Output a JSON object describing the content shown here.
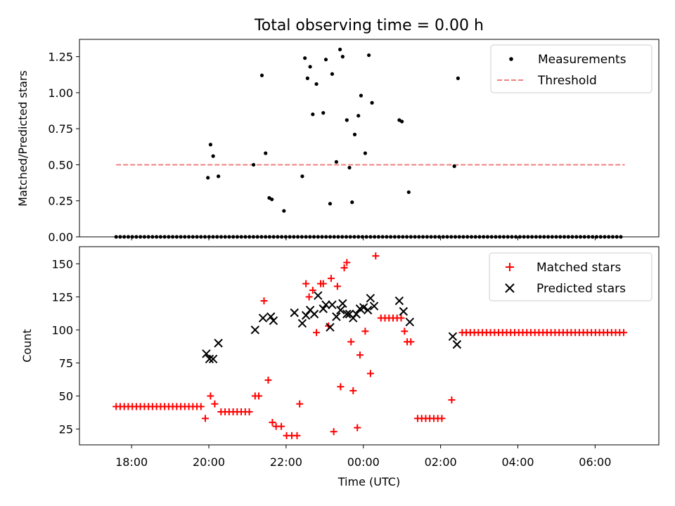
{
  "colors": {
    "measurement": "#000000",
    "threshold": "#f08080",
    "matched": "#ff0000",
    "predicted": "#000000",
    "axis": "#000000"
  },
  "chart_data": [
    {
      "type": "scatter",
      "title": "Total observing time = 0.00 h",
      "xlabel": "",
      "ylabel": "Matched/Predicted stars",
      "xlim": [
        -1.4,
        9.65
      ],
      "ylim": [
        0,
        1.37
      ],
      "yticks": [
        0.0,
        0.25,
        0.5,
        0.75,
        1.0,
        1.25
      ],
      "ytick_labels": [
        "0.00",
        "0.25",
        "0.50",
        "0.75",
        "1.00",
        "1.25"
      ],
      "legend_position": "top-right",
      "legend": {
        "measurements": "Measurements",
        "threshold": "Threshold"
      },
      "threshold": {
        "value": 0.5,
        "x_start": -0.7,
        "x_end": 9.0
      },
      "zero_points": {
        "from": -0.7,
        "to": 9.0,
        "step": 0.077,
        "value": 0
      },
      "measurements": [
        {
          "x": 1.05,
          "y": 0.41
        },
        {
          "x": 1.1,
          "y": 0.64
        },
        {
          "x": 1.15,
          "y": 0.56
        },
        {
          "x": 1.25,
          "y": 0.42
        },
        {
          "x": 1.92,
          "y": 0.5
        },
        {
          "x": 2.08,
          "y": 1.12
        },
        {
          "x": 2.15,
          "y": 0.58
        },
        {
          "x": 2.22,
          "y": 0.27
        },
        {
          "x": 2.27,
          "y": 0.26
        },
        {
          "x": 2.5,
          "y": 0.18
        },
        {
          "x": 2.85,
          "y": 0.42
        },
        {
          "x": 2.9,
          "y": 1.24
        },
        {
          "x": 2.95,
          "y": 1.1
        },
        {
          "x": 3.0,
          "y": 1.18
        },
        {
          "x": 3.05,
          "y": 0.85
        },
        {
          "x": 3.12,
          "y": 1.06
        },
        {
          "x": 3.25,
          "y": 0.86
        },
        {
          "x": 3.3,
          "y": 1.23
        },
        {
          "x": 3.38,
          "y": 0.23
        },
        {
          "x": 3.42,
          "y": 1.13
        },
        {
          "x": 3.5,
          "y": 0.52
        },
        {
          "x": 3.57,
          "y": 1.3
        },
        {
          "x": 3.62,
          "y": 1.25
        },
        {
          "x": 3.7,
          "y": 0.81
        },
        {
          "x": 3.75,
          "y": 0.48
        },
        {
          "x": 3.8,
          "y": 0.24
        },
        {
          "x": 3.85,
          "y": 0.71
        },
        {
          "x": 3.92,
          "y": 0.84
        },
        {
          "x": 3.97,
          "y": 0.98
        },
        {
          "x": 4.05,
          "y": 0.58
        },
        {
          "x": 4.12,
          "y": 1.26
        },
        {
          "x": 4.18,
          "y": 0.93
        },
        {
          "x": 4.7,
          "y": 0.81
        },
        {
          "x": 4.75,
          "y": 0.8
        },
        {
          "x": 4.88,
          "y": 0.31
        },
        {
          "x": 5.75,
          "y": 0.49
        },
        {
          "x": 5.82,
          "y": 1.1
        }
      ]
    },
    {
      "type": "scatter",
      "title": "",
      "xlabel": "Time (UTC)",
      "ylabel": "Count",
      "xlim": [
        -1.4,
        9.65
      ],
      "ylim": [
        13,
        163
      ],
      "yticks": [
        25,
        50,
        75,
        100,
        125,
        150
      ],
      "ytick_labels": [
        "25",
        "50",
        "75",
        "100",
        "125",
        "150"
      ],
      "xticks": [
        0,
        2,
        4,
        6,
        8
      ],
      "xtick_labels": [
        "18:00",
        "20:00",
        "22:00",
        "00:00",
        "02:00",
        "04:00",
        "06:00"
      ],
      "xtick_values": [
        0,
        2,
        4,
        6,
        8,
        10,
        12
      ],
      "legend_position": "top-right",
      "legend": {
        "matched": "Matched stars",
        "predicted": "Predicted stars"
      },
      "matched_runs": [
        {
          "from": -0.7,
          "to": 0.95,
          "step": 0.077,
          "value": 42
        },
        {
          "from": 1.3,
          "to": 1.9,
          "step": 0.077,
          "value": 38
        },
        {
          "from": 4.35,
          "to": 4.75,
          "step": 0.077,
          "value": 109
        },
        {
          "from": 5.05,
          "to": 5.58,
          "step": 0.077,
          "value": 33
        },
        {
          "from": 5.9,
          "to": 9.0,
          "step": 0.077,
          "value": 98
        }
      ],
      "matched": [
        {
          "x": 1.0,
          "y": 33
        },
        {
          "x": 1.1,
          "y": 50
        },
        {
          "x": 1.18,
          "y": 44
        },
        {
          "x": 1.95,
          "y": 50
        },
        {
          "x": 2.02,
          "y": 50
        },
        {
          "x": 2.12,
          "y": 122
        },
        {
          "x": 2.2,
          "y": 62
        },
        {
          "x": 2.28,
          "y": 30
        },
        {
          "x": 2.35,
          "y": 27
        },
        {
          "x": 2.45,
          "y": 27
        },
        {
          "x": 2.55,
          "y": 20
        },
        {
          "x": 2.65,
          "y": 20
        },
        {
          "x": 2.75,
          "y": 20
        },
        {
          "x": 2.8,
          "y": 44
        },
        {
          "x": 2.92,
          "y": 135
        },
        {
          "x": 2.98,
          "y": 125
        },
        {
          "x": 3.05,
          "y": 130
        },
        {
          "x": 3.12,
          "y": 98
        },
        {
          "x": 3.2,
          "y": 135
        },
        {
          "x": 3.25,
          "y": 135
        },
        {
          "x": 3.35,
          "y": 103
        },
        {
          "x": 3.4,
          "y": 139
        },
        {
          "x": 3.45,
          "y": 23
        },
        {
          "x": 3.52,
          "y": 133
        },
        {
          "x": 3.58,
          "y": 57
        },
        {
          "x": 3.65,
          "y": 147
        },
        {
          "x": 3.7,
          "y": 151
        },
        {
          "x": 3.78,
          "y": 91
        },
        {
          "x": 3.82,
          "y": 54
        },
        {
          "x": 3.9,
          "y": 26
        },
        {
          "x": 3.95,
          "y": 81
        },
        {
          "x": 4.05,
          "y": 99
        },
        {
          "x": 4.15,
          "y": 67
        },
        {
          "x": 4.25,
          "y": 156
        },
        {
          "x": 4.8,
          "y": 99
        },
        {
          "x": 4.85,
          "y": 91
        },
        {
          "x": 4.92,
          "y": 91
        },
        {
          "x": 5.7,
          "y": 47
        }
      ],
      "predicted": [
        {
          "x": 1.02,
          "y": 82
        },
        {
          "x": 1.08,
          "y": 78
        },
        {
          "x": 1.15,
          "y": 78
        },
        {
          "x": 1.25,
          "y": 90
        },
        {
          "x": 1.95,
          "y": 100
        },
        {
          "x": 2.1,
          "y": 109
        },
        {
          "x": 2.25,
          "y": 110
        },
        {
          "x": 2.3,
          "y": 107
        },
        {
          "x": 2.7,
          "y": 113
        },
        {
          "x": 2.85,
          "y": 105
        },
        {
          "x": 2.92,
          "y": 111
        },
        {
          "x": 3.0,
          "y": 115
        },
        {
          "x": 3.08,
          "y": 112
        },
        {
          "x": 3.15,
          "y": 126
        },
        {
          "x": 3.25,
          "y": 116
        },
        {
          "x": 3.3,
          "y": 119
        },
        {
          "x": 3.38,
          "y": 102
        },
        {
          "x": 3.42,
          "y": 119
        },
        {
          "x": 3.5,
          "y": 110
        },
        {
          "x": 3.58,
          "y": 115
        },
        {
          "x": 3.62,
          "y": 120
        },
        {
          "x": 3.7,
          "y": 112
        },
        {
          "x": 3.75,
          "y": 112
        },
        {
          "x": 3.82,
          "y": 109
        },
        {
          "x": 3.88,
          "y": 112
        },
        {
          "x": 3.95,
          "y": 116
        },
        {
          "x": 4.02,
          "y": 117
        },
        {
          "x": 4.1,
          "y": 115
        },
        {
          "x": 4.15,
          "y": 124
        },
        {
          "x": 4.22,
          "y": 118
        },
        {
          "x": 4.7,
          "y": 122
        },
        {
          "x": 4.78,
          "y": 114
        },
        {
          "x": 4.9,
          "y": 106
        },
        {
          "x": 5.72,
          "y": 95
        },
        {
          "x": 5.8,
          "y": 89
        }
      ]
    }
  ]
}
